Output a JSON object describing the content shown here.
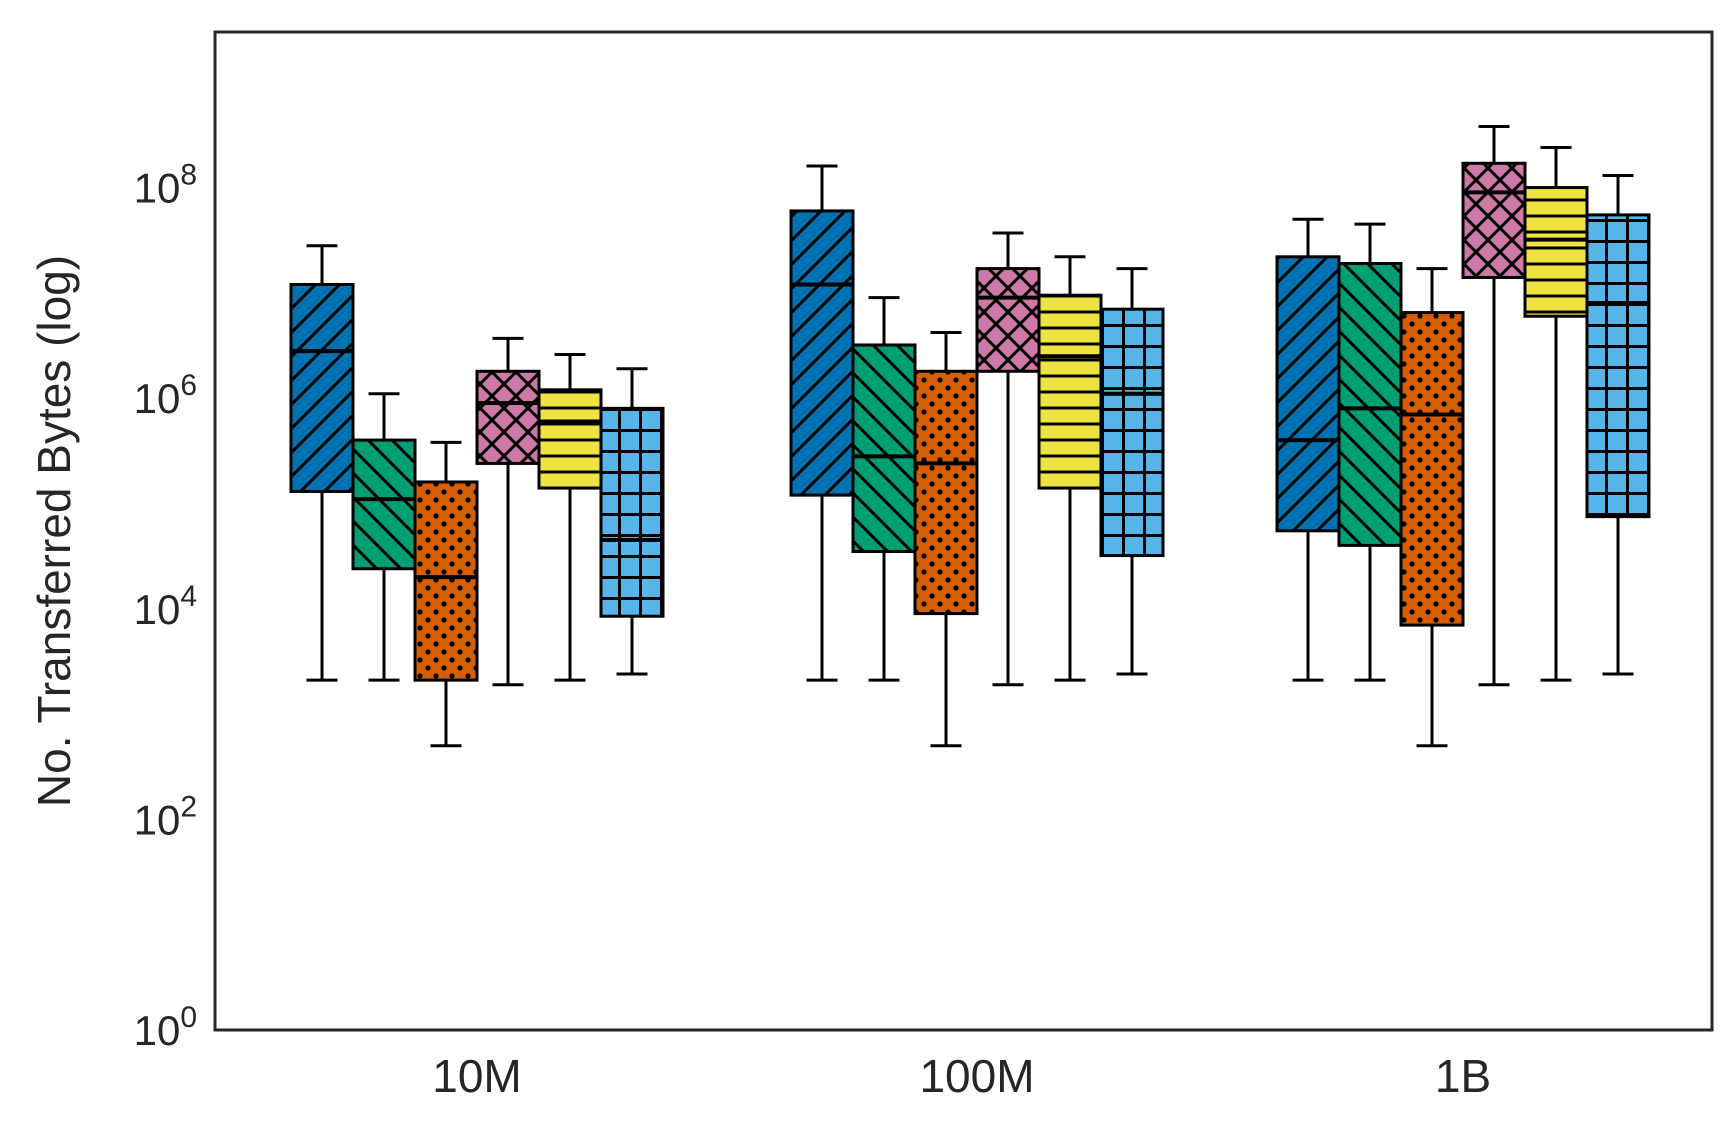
{
  "chart_data": {
    "type": "boxplot",
    "ylabel": "No. Transferred Bytes (log)",
    "yscale": "log",
    "ylim": [
      1,
      3000000000
    ],
    "yticks": [
      {
        "value": 1,
        "base": "10",
        "exp": "0"
      },
      {
        "value": 100,
        "base": "10",
        "exp": "2"
      },
      {
        "value": 10000,
        "base": "10",
        "exp": "4"
      },
      {
        "value": 1000000,
        "base": "10",
        "exp": "6"
      },
      {
        "value": 100000000,
        "base": "10",
        "exp": "8"
      }
    ],
    "categories": [
      "10M",
      "100M",
      "1B"
    ],
    "grid": false,
    "legend": "none",
    "series": [
      {
        "color": "#0072b2",
        "hatch": "diagonal-forward",
        "boxes": [
          {
            "whislo": 2100,
            "q1": 130000,
            "med": 2800000,
            "q3": 12000000,
            "whishi": 28000000
          },
          {
            "whislo": 2100,
            "q1": 120000,
            "med": 12000000,
            "q3": 60000000,
            "whishi": 160000000
          },
          {
            "whislo": 2100,
            "q1": 55000,
            "med": 400000,
            "q3": 22000000,
            "whishi": 50000000
          }
        ]
      },
      {
        "color": "#009e73",
        "hatch": "diagonal-back",
        "boxes": [
          {
            "whislo": 2100,
            "q1": 24000,
            "med": 110000,
            "q3": 400000,
            "whishi": 1100000
          },
          {
            "whislo": 2100,
            "q1": 35000,
            "med": 280000,
            "q3": 3200000,
            "whishi": 9000000
          },
          {
            "whislo": 2100,
            "q1": 40000,
            "med": 800000,
            "q3": 19000000,
            "whishi": 45000000
          }
        ]
      },
      {
        "color": "#d55e00",
        "hatch": "dots",
        "boxes": [
          {
            "whislo": 500,
            "q1": 2100,
            "med": 20000,
            "q3": 160000,
            "whishi": 380000
          },
          {
            "whislo": 500,
            "q1": 9000,
            "med": 240000,
            "q3": 1800000,
            "whishi": 4200000
          },
          {
            "whislo": 500,
            "q1": 7000,
            "med": 700000,
            "q3": 6500000,
            "whishi": 17000000
          }
        ]
      },
      {
        "color": "#cc79a7",
        "hatch": "cross-diagonal",
        "boxes": [
          {
            "whislo": 1900,
            "q1": 240000,
            "med": 900000,
            "q3": 1800000,
            "whishi": 3700000
          },
          {
            "whislo": 1900,
            "q1": 1800000,
            "med": 9000000,
            "q3": 17000000,
            "whishi": 37000000
          },
          {
            "whislo": 1900,
            "q1": 14000000,
            "med": 90000000,
            "q3": 170000000,
            "whishi": 380000000
          }
        ]
      },
      {
        "color": "#f0e442",
        "hatch": "horizontal",
        "boxes": [
          {
            "whislo": 2100,
            "q1": 140000,
            "med": 600000,
            "q3": 1200000,
            "whishi": 2600000
          },
          {
            "whislo": 2100,
            "q1": 140000,
            "med": 2500000,
            "q3": 9500000,
            "whishi": 22000000
          },
          {
            "whislo": 2100,
            "q1": 6000000,
            "med": 32000000,
            "q3": 100000000,
            "whishi": 240000000
          }
        ]
      },
      {
        "color": "#56b4e9",
        "hatch": "grid",
        "boxes": [
          {
            "whislo": 2400,
            "q1": 8500,
            "med": 45000,
            "q3": 800000,
            "whishi": 1900000
          },
          {
            "whislo": 2400,
            "q1": 32000,
            "med": 1100000,
            "q3": 7000000,
            "whishi": 17000000
          },
          {
            "whislo": 2400,
            "q1": 75000,
            "med": 8000000,
            "q3": 55000000,
            "whishi": 130000000
          }
        ]
      }
    ]
  }
}
